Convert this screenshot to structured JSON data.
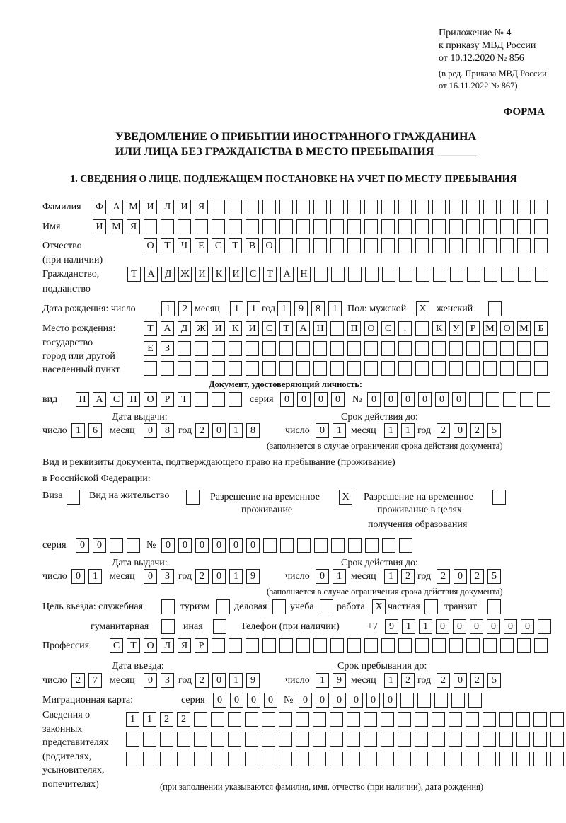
{
  "header": {
    "appendix": [
      "Приложение № 4",
      "к приказу МВД России",
      "от 10.12.2020 № 856"
    ],
    "edition": [
      "(в ред. Приказа МВД России",
      "от 16.11.2022 № 867)"
    ],
    "forma": "ФОРМА",
    "title_line1": "УВЕДОМЛЕНИЕ О ПРИБЫТИИ ИНОСТРАННОГО ГРАЖДАНИНА",
    "title_line2": "ИЛИ ЛИЦА БЕЗ ГРАЖДАНСТВА В МЕСТО ПРЕБЫВАНИЯ _______",
    "section1": "1. СВЕДЕНИЯ О ЛИЦЕ, ПОДЛЕЖАЩЕМ ПОСТАНОВКЕ НА УЧЕТ ПО МЕСТУ ПРЕБЫВАНИЯ"
  },
  "labels": {
    "surname": "Фамилия",
    "name": "Имя",
    "patronymic": "Отчество",
    "patronymic2": "(при наличии)",
    "citizenship": "Гражданство,",
    "citizenship2": "подданство",
    "birth_date": "Дата рождения:   число",
    "month": "месяц",
    "year": "год",
    "day": "число",
    "sex": "Пол: мужской",
    "female": "женский",
    "birthplace1": "Место рождения:",
    "birthplace2": "государство",
    "birthplace3": "город или другой",
    "birthplace4": "населенный пункт",
    "id_doc": "Документ, удостоверяющий личность:",
    "kind": "вид",
    "series": "серия",
    "number": "№",
    "issue_date": "Дата выдачи:",
    "valid_until": "Срок действия до:",
    "validity_note": "(заполняется в случае ограничения срока действия документа)",
    "residence_doc1": "Вид и реквизиты документа, подтверждающего право на пребывание (проживание)",
    "residence_doc2": "в Российской Федерации:",
    "visa": "Виза",
    "residence_permit": "Вид на жительство",
    "temp_permit1": "Разрешение на временное",
    "temp_permit2": "проживание",
    "edu_permit1": "Разрешение на временное",
    "edu_permit2": "проживание в целях",
    "edu_permit3": "получения образования",
    "purpose": "Цель въезда: служебная",
    "tourism": "туризм",
    "business": "деловая",
    "study": "учеба",
    "work": "работа",
    "private": "частная",
    "transit": "транзит",
    "humanitarian": "гуманитарная",
    "other": "иная",
    "phone": "Телефон (при наличии)",
    "phone_prefix": "+7",
    "profession": "Профессия",
    "entry_date": "Дата въезда:",
    "stay_until": "Срок пребывания до:",
    "migration_card": "Миграционная карта:",
    "reps1": "Сведения о",
    "reps2": "законных",
    "reps3": "представителях",
    "reps4": "(родителях,",
    "reps5": "усыновителях,",
    "reps6": "попечителях)",
    "reps_note": "(при заполнении указываются фамилия, имя, отчество (при наличии), дата рождения)"
  },
  "values": {
    "surname": "ФАМИЛИЯ",
    "name": "ИМЯ",
    "patronymic": "ОТЧЕСТВО",
    "citizenship": "ТАДЖИКИСТАН",
    "birth_day": "12",
    "birth_month": "11",
    "birth_year": "1981",
    "sex_male": "X",
    "sex_female": "",
    "birthplace_line1": "ТАДЖИКИСТАН ПОС. КУРМОМБ",
    "birthplace_line2": "ЕЗ",
    "birthplace_line3": "",
    "id_kind": "ПАСПОРТ",
    "id_series": "0000",
    "id_number": "000000",
    "id_issue_day": "16",
    "id_issue_month": "08",
    "id_issue_year": "2018",
    "id_valid_day": "01",
    "id_valid_month": "11",
    "id_valid_year": "2025",
    "visa": "",
    "residence_permit": "",
    "temp_permit": "X",
    "edu_permit": "",
    "res_series": "00",
    "res_number": "000000",
    "res_issue_day": "01",
    "res_issue_month": "03",
    "res_issue_year": "2019",
    "res_valid_day": "01",
    "res_valid_month": "12",
    "res_valid_year": "2025",
    "purpose_official": "",
    "purpose_tourism": "",
    "purpose_business": "",
    "purpose_study": "",
    "purpose_work": "X",
    "purpose_private": "",
    "purpose_transit": "",
    "purpose_humanitarian": "",
    "purpose_other": "",
    "phone": "911000000",
    "profession": "СТОЛЯР",
    "entry_day": "27",
    "entry_month": "03",
    "entry_year": "2019",
    "stay_day": "19",
    "stay_month": "12",
    "stay_year": "2025",
    "mc_series": "0000",
    "mc_number": "000000",
    "reps_line1": "1122",
    "reps_line2": "",
    "reps_line3": ""
  }
}
